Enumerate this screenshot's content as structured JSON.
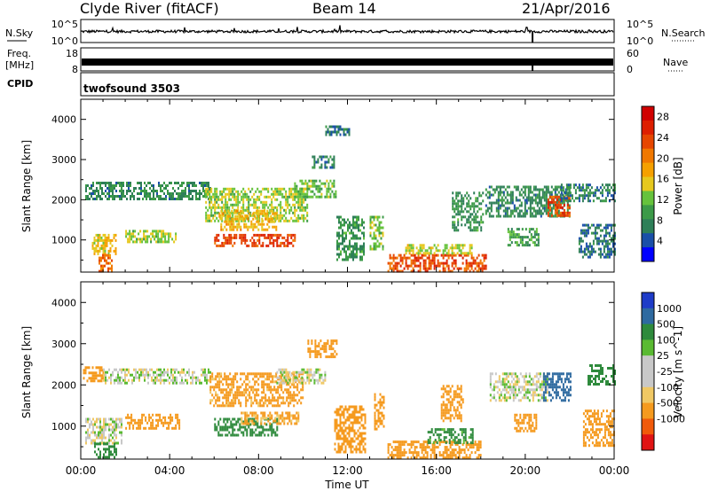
{
  "header": {
    "station": "Clyde River (fitACF)",
    "beam": "Beam 14",
    "date": "21/Apr/2016"
  },
  "noise_panel": {
    "left_label": "N.Sky",
    "right_label": "N.Search",
    "tick_top": "10^5",
    "tick_bottom": "10^0"
  },
  "freq_panel": {
    "left_label_line1": "Freq.",
    "left_label_line2": "[MHz]",
    "left_tick_top": "18",
    "left_tick_bottom": "8",
    "right_label": "Nave",
    "right_tick_top": "60",
    "right_tick_bottom": "0"
  },
  "cpid_panel": {
    "label": "CPID",
    "program": "twofsound 3503"
  },
  "x_axis": {
    "label": "Time UT",
    "ticks": [
      "00:00",
      "04:00",
      "08:00",
      "12:00",
      "16:00",
      "20:00",
      "00:00"
    ],
    "range_hours": [
      0,
      24
    ]
  },
  "colors": {
    "power_scale": [
      "#0000ff",
      "#1a4fa8",
      "#2e7f58",
      "#3c9a48",
      "#66c23c",
      "#e6c81e",
      "#f5a000",
      "#f07800",
      "#e64600",
      "#dd1e00",
      "#d00000"
    ],
    "velocity_scale": [
      "#e01414",
      "#f05a0a",
      "#f59a1e",
      "#f0c864",
      "#c8c8c8",
      "#c8c8c8",
      "#5aba32",
      "#2e8a3c",
      "#2e6aa0",
      "#1e3cc8"
    ]
  },
  "chart_data": [
    {
      "type": "heatmap",
      "name": "Power",
      "ylabel": "Slant Range [km]",
      "xlim": [
        0,
        24
      ],
      "ylim": [
        200,
        4500
      ],
      "yticks": [
        1000,
        2000,
        3000,
        4000
      ],
      "colorbar": {
        "label": "Power [dB]",
        "ticks": [
          "4",
          "8",
          "12",
          "16",
          "20",
          "24",
          "28"
        ],
        "range": [
          0,
          30
        ]
      },
      "regions": [
        {
          "t": [
            0.2,
            5.8
          ],
          "r": [
            2050,
            2450
          ],
          "v": 7
        },
        {
          "t": [
            0.5,
            1.6
          ],
          "r": [
            650,
            1150
          ],
          "v": 16
        },
        {
          "t": [
            0.8,
            1.4
          ],
          "r": [
            250,
            650
          ],
          "v": 22
        },
        {
          "t": [
            2.0,
            4.3
          ],
          "r": [
            950,
            1250
          ],
          "v": 13
        },
        {
          "t": [
            5.6,
            10.2
          ],
          "r": [
            1500,
            2300
          ],
          "v": 13
        },
        {
          "t": [
            6.0,
            9.6
          ],
          "r": [
            850,
            1150
          ],
          "v": 25
        },
        {
          "t": [
            6.2,
            8.8
          ],
          "r": [
            1250,
            1750
          ],
          "v": 17
        },
        {
          "t": [
            9.6,
            11.5
          ],
          "r": [
            2050,
            2500
          ],
          "v": 11
        },
        {
          "t": [
            10.4,
            11.4
          ],
          "r": [
            2800,
            3100
          ],
          "v": 6
        },
        {
          "t": [
            11.0,
            12.1
          ],
          "r": [
            3600,
            3850
          ],
          "v": 5
        },
        {
          "t": [
            11.5,
            12.7
          ],
          "r": [
            500,
            1600
          ],
          "v": 8
        },
        {
          "t": [
            13.0,
            13.6
          ],
          "r": [
            800,
            1600
          ],
          "v": 12
        },
        {
          "t": [
            13.8,
            18.2
          ],
          "r": [
            250,
            650
          ],
          "v": 24
        },
        {
          "t": [
            14.6,
            17.6
          ],
          "r": [
            650,
            900
          ],
          "v": 14
        },
        {
          "t": [
            16.7,
            18.1
          ],
          "r": [
            1250,
            2200
          ],
          "v": 8
        },
        {
          "t": [
            18.2,
            22.0
          ],
          "r": [
            1600,
            2350
          ],
          "v": 7
        },
        {
          "t": [
            19.2,
            20.6
          ],
          "r": [
            900,
            1300
          ],
          "v": 9
        },
        {
          "t": [
            21.0,
            22.0
          ],
          "r": [
            1600,
            2100
          ],
          "v": 24
        },
        {
          "t": [
            21.6,
            24.0
          ],
          "r": [
            2000,
            2400
          ],
          "v": 6
        },
        {
          "t": [
            22.4,
            24.0
          ],
          "r": [
            600,
            1400
          ],
          "v": 5
        }
      ]
    },
    {
      "type": "heatmap",
      "name": "Velocity",
      "ylabel": "Slant Range [km]",
      "xlim": [
        0,
        24
      ],
      "ylim": [
        200,
        4500
      ],
      "yticks": [
        1000,
        2000,
        3000,
        4000
      ],
      "colorbar": {
        "label": "Velocity [m s^-1]",
        "ticks": [
          "1000",
          "500",
          "100",
          "25",
          "-25",
          "-100",
          "-500",
          "-1000"
        ]
      },
      "regions": [
        {
          "t": [
            0.1,
            1.0
          ],
          "r": [
            2100,
            2450
          ],
          "v": -300
        },
        {
          "t": [
            1.0,
            5.8
          ],
          "r": [
            2050,
            2400
          ],
          "v": 0
        },
        {
          "t": [
            0.2,
            1.8
          ],
          "r": [
            600,
            1200
          ],
          "v": 0
        },
        {
          "t": [
            0.6,
            1.6
          ],
          "r": [
            250,
            600
          ],
          "v": 200
        },
        {
          "t": [
            2.0,
            4.4
          ],
          "r": [
            950,
            1300
          ],
          "v": -250
        },
        {
          "t": [
            5.8,
            10.0
          ],
          "r": [
            1500,
            2300
          ],
          "v": -150
        },
        {
          "t": [
            6.0,
            8.8
          ],
          "r": [
            800,
            1200
          ],
          "v": 180
        },
        {
          "t": [
            7.2,
            9.8
          ],
          "r": [
            1050,
            1350
          ],
          "v": -120
        },
        {
          "t": [
            8.8,
            11.0
          ],
          "r": [
            2050,
            2400
          ],
          "v": 0
        },
        {
          "t": [
            10.2,
            11.5
          ],
          "r": [
            2700,
            3100
          ],
          "v": -200
        },
        {
          "t": [
            11.4,
            12.8
          ],
          "r": [
            400,
            1500
          ],
          "v": -300
        },
        {
          "t": [
            13.2,
            13.6
          ],
          "r": [
            900,
            1800
          ],
          "v": -250
        },
        {
          "t": [
            13.8,
            18.0
          ],
          "r": [
            250,
            650
          ],
          "v": -350
        },
        {
          "t": [
            15.6,
            17.6
          ],
          "r": [
            600,
            950
          ],
          "v": 150
        },
        {
          "t": [
            16.2,
            17.2
          ],
          "r": [
            1100,
            2000
          ],
          "v": -300
        },
        {
          "t": [
            18.4,
            21.0
          ],
          "r": [
            1600,
            2300
          ],
          "v": 0
        },
        {
          "t": [
            19.5,
            20.5
          ],
          "r": [
            900,
            1300
          ],
          "v": -250
        },
        {
          "t": [
            20.8,
            22.0
          ],
          "r": [
            1600,
            2300
          ],
          "v": 800
        },
        {
          "t": [
            22.8,
            24.0
          ],
          "r": [
            2000,
            2500
          ],
          "v": 400
        },
        {
          "t": [
            22.6,
            24.0
          ],
          "r": [
            500,
            1400
          ],
          "v": -250
        }
      ]
    }
  ]
}
